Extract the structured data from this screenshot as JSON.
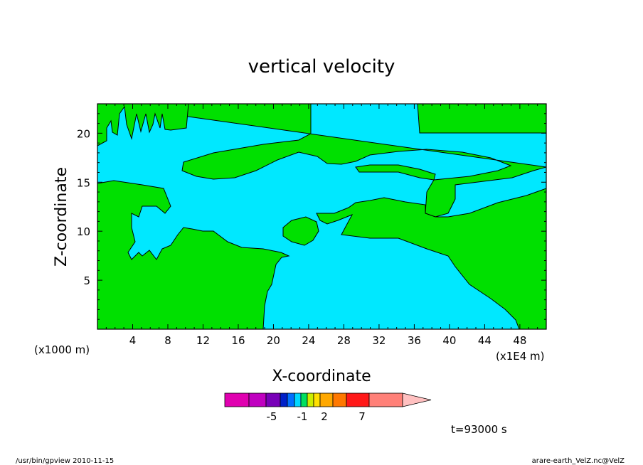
{
  "chart_data": {
    "type": "heatmap",
    "title": "vertical velocity",
    "xlabel": "X-coordinate",
    "ylabel": "Z-coordinate",
    "x_unit_note": "(x1000 m)",
    "x_scale_note": "(x1E4 m)",
    "xticks": [
      "4",
      "8",
      "12",
      "16",
      "20",
      "24",
      "28",
      "32",
      "36",
      "40",
      "44",
      "48"
    ],
    "xtick_values": [
      4,
      8,
      12,
      16,
      20,
      24,
      28,
      32,
      36,
      40,
      44,
      48
    ],
    "yticks": [
      "5",
      "10",
      "15",
      "20"
    ],
    "ytick_values": [
      5,
      10,
      15,
      20
    ],
    "xlim": [
      0,
      51
    ],
    "ylim": [
      0,
      23
    ],
    "colors": {
      "positive_region": "#00e000",
      "negative_region": "#00e8ff",
      "contour_line": "#000000"
    },
    "colorbar": {
      "segments": [
        "#e000b0",
        "#c000c0",
        "#7800b8",
        "#0020c8",
        "#0070ff",
        "#00d8ff",
        "#00e060",
        "#ccee00",
        "#ffe000",
        "#ffa800",
        "#ff7800",
        "#ff1818",
        "#ff8078"
      ],
      "end_color": "#ffc0c0",
      "labels": [
        "-5",
        "-1",
        "2",
        "7"
      ]
    },
    "time_label": "t=93000 s"
  },
  "footer": {
    "left": "/usr/bin/gpview  2010-11-15",
    "right": "arare-earth_VelZ.nc@VelZ"
  }
}
